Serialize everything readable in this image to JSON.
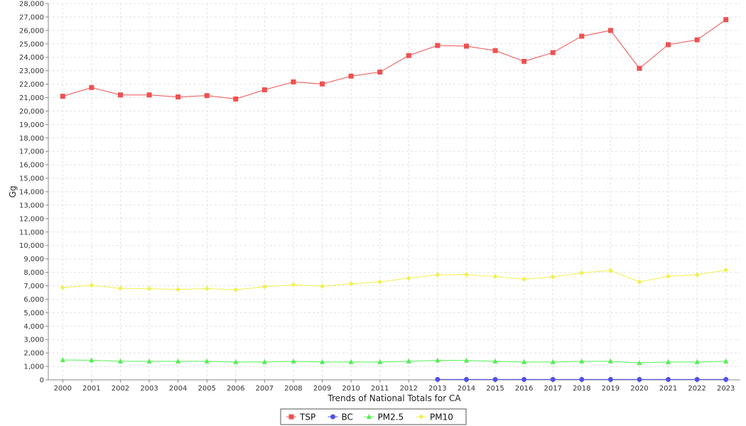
{
  "chart_data": {
    "type": "line",
    "title": "",
    "xlabel": "Trends of National Totals for CA",
    "ylabel": "Gg",
    "ylim": [
      0,
      28000
    ],
    "ytick_step": 1000,
    "grid": true,
    "legend_position": "bottom-center",
    "categories": [
      "2000",
      "2001",
      "2002",
      "2003",
      "2004",
      "2005",
      "2006",
      "2007",
      "2008",
      "2009",
      "2010",
      "2011",
      "2012",
      "2013",
      "2014",
      "2015",
      "2016",
      "2017",
      "2018",
      "2019",
      "2020",
      "2021",
      "2022",
      "2023"
    ],
    "series": [
      {
        "name": "TSP",
        "color": "#f05050",
        "marker": "square",
        "values": [
          21100,
          21750,
          21200,
          21200,
          21050,
          21150,
          20900,
          21580,
          22170,
          22020,
          22600,
          22900,
          24130,
          24880,
          24830,
          24500,
          23700,
          24350,
          25570,
          26000,
          23180,
          24940,
          25300,
          26800
        ]
      },
      {
        "name": "BC",
        "color": "#5050f0",
        "marker": "circle",
        "values": [
          null,
          null,
          null,
          null,
          null,
          null,
          null,
          null,
          null,
          null,
          null,
          null,
          null,
          30,
          30,
          30,
          30,
          30,
          30,
          30,
          30,
          30,
          30,
          30
        ]
      },
      {
        "name": "PM2.5",
        "color": "#50f050",
        "marker": "triangle",
        "values": [
          1480,
          1460,
          1380,
          1380,
          1380,
          1380,
          1330,
          1330,
          1380,
          1330,
          1330,
          1330,
          1380,
          1450,
          1440,
          1380,
          1330,
          1330,
          1380,
          1380,
          1260,
          1330,
          1330,
          1380
        ]
      },
      {
        "name": "PM10",
        "color": "#f0f050",
        "marker": "diamond",
        "values": [
          6870,
          7030,
          6800,
          6780,
          6730,
          6790,
          6700,
          6930,
          7070,
          6970,
          7150,
          7290,
          7570,
          7820,
          7830,
          7690,
          7490,
          7660,
          7960,
          8140,
          7290,
          7700,
          7820,
          8170
        ]
      }
    ]
  }
}
